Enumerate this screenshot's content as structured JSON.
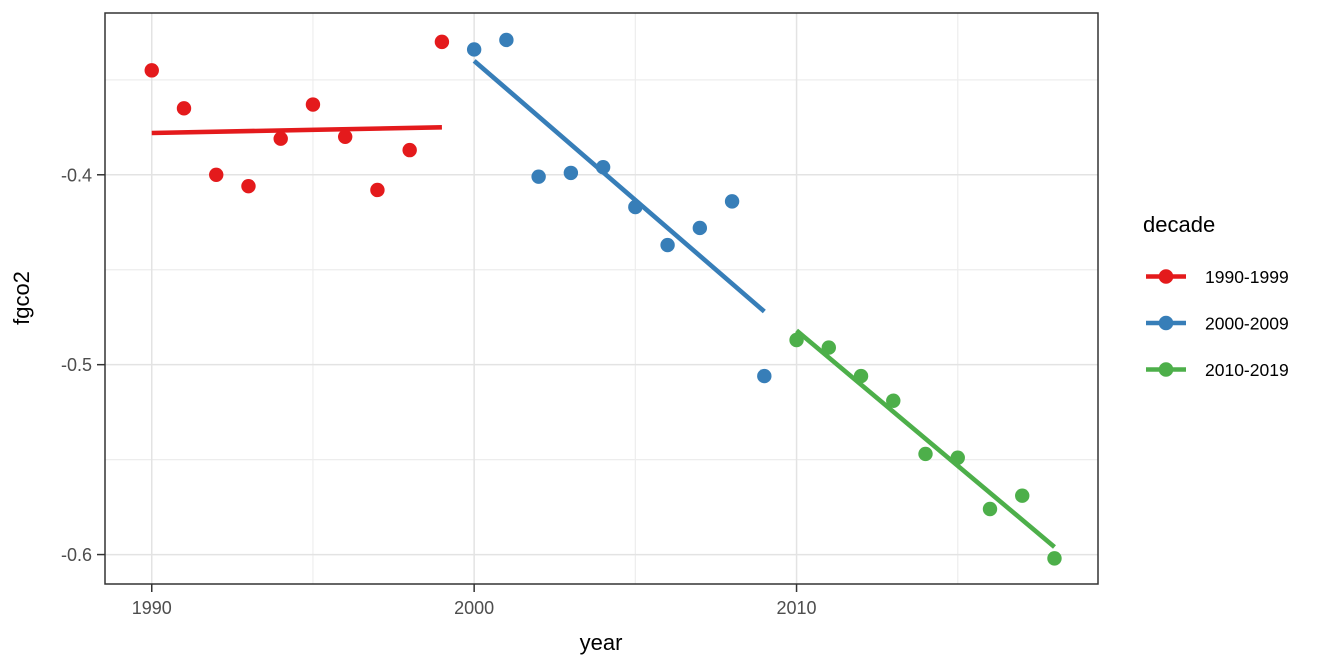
{
  "figure": {
    "background": "#FFFFFF"
  },
  "chart_data": {
    "type": "scatter",
    "title": "",
    "xlabel": "year",
    "ylabel": "fgco2",
    "grid": true,
    "legend": {
      "title": "decade",
      "position": "right",
      "entries": [
        {
          "label": "1990-1999",
          "color": "#E41A1C"
        },
        {
          "label": "2000-2009",
          "color": "#377EB8"
        },
        {
          "label": "2010-2019",
          "color": "#4DAF4A"
        }
      ]
    },
    "axes": {
      "x": {
        "lim": [
          1988.55,
          2019.35
        ],
        "ticks": [
          1990,
          2000,
          2010
        ],
        "tick_labels": [
          "1990",
          "2000",
          "2010"
        ],
        "minor_ticks": [
          1995,
          2005,
          2015
        ]
      },
      "y": {
        "lim": [
          -0.6155,
          -0.3148
        ],
        "ticks": [
          -0.4,
          -0.5,
          -0.6
        ],
        "tick_labels": [
          "-0.4",
          "-0.5",
          "-0.6"
        ],
        "minor_ticks": [
          -0.35,
          -0.45,
          -0.55
        ]
      }
    },
    "series": [
      {
        "name": "1990-1999",
        "color": "#E41A1C",
        "x": [
          1990,
          1991,
          1992,
          1993,
          1994,
          1995,
          1996,
          1997,
          1998,
          1999
        ],
        "y": [
          -0.345,
          -0.365,
          -0.4,
          -0.406,
          -0.381,
          -0.363,
          -0.38,
          -0.408,
          -0.387,
          -0.33
        ],
        "trend_line": {
          "x": [
            1990,
            1999
          ],
          "y": [
            -0.378,
            -0.375
          ]
        }
      },
      {
        "name": "2000-2009",
        "color": "#377EB8",
        "x": [
          2000,
          2001,
          2002,
          2003,
          2004,
          2005,
          2006,
          2007,
          2008,
          2009
        ],
        "y": [
          -0.334,
          -0.329,
          -0.401,
          -0.399,
          -0.396,
          -0.417,
          -0.437,
          -0.428,
          -0.414,
          -0.506
        ],
        "trend_line": {
          "x": [
            2000,
            2009
          ],
          "y": [
            -0.34,
            -0.472
          ]
        }
      },
      {
        "name": "2010-2019",
        "color": "#4DAF4A",
        "x": [
          2010,
          2011,
          2012,
          2013,
          2014,
          2015,
          2016,
          2017,
          2018
        ],
        "y": [
          -0.487,
          -0.491,
          -0.506,
          -0.519,
          -0.547,
          -0.549,
          -0.576,
          -0.569,
          -0.602
        ],
        "trend_line": {
          "x": [
            2010,
            2018
          ],
          "y": [
            -0.482,
            -0.596
          ]
        }
      }
    ],
    "theme": {
      "panel_background": "#FFFFFF",
      "panel_border": "#333333",
      "grid_major": "#E3E3E3",
      "grid_minor": "#EDEDED",
      "tick_color": "#333333",
      "tick_label_color": "#4D4D4D",
      "text_color": "#000000"
    }
  }
}
